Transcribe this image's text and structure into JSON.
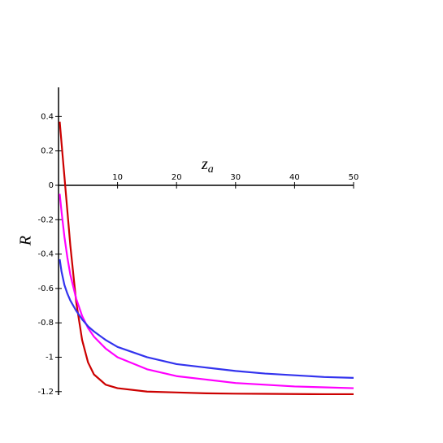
{
  "chart_data": {
    "type": "line",
    "x_label": "z",
    "x_label_subscript": "a",
    "y_label": "R",
    "x": [
      0.2,
      0.5,
      1,
      1.5,
      2,
      3,
      4,
      5,
      6,
      8,
      10,
      15,
      20,
      25,
      30,
      35,
      40,
      45,
      50
    ],
    "series": [
      {
        "name": "red",
        "color": "#cc0000",
        "values": [
          0.37,
          0.25,
          0.05,
          -0.15,
          -0.35,
          -0.68,
          -0.9,
          -1.03,
          -1.1,
          -1.16,
          -1.18,
          -1.2,
          -1.205,
          -1.21,
          -1.212,
          -1.213,
          -1.214,
          -1.215,
          -1.215
        ]
      },
      {
        "name": "magenta",
        "color": "#ff00ff",
        "values": [
          -0.05,
          -0.15,
          -0.3,
          -0.42,
          -0.52,
          -0.66,
          -0.76,
          -0.83,
          -0.88,
          -0.95,
          -1.0,
          -1.07,
          -1.11,
          -1.13,
          -1.15,
          -1.16,
          -1.17,
          -1.175,
          -1.18
        ]
      },
      {
        "name": "blue",
        "color": "#3333ee",
        "values": [
          -0.43,
          -0.5,
          -0.58,
          -0.63,
          -0.67,
          -0.73,
          -0.78,
          -0.82,
          -0.85,
          -0.9,
          -0.94,
          -1.0,
          -1.04,
          -1.06,
          -1.08,
          -1.095,
          -1.105,
          -1.115,
          -1.12
        ]
      }
    ],
    "xlim": [
      0,
      50
    ],
    "xticks": [
      10,
      20,
      30,
      40,
      50
    ],
    "ylim": [
      -1.22,
      0.57
    ],
    "yticks": [
      0.4,
      0.2,
      0,
      -0.2,
      -0.4,
      -0.6,
      -0.8,
      -1,
      -1.2
    ]
  }
}
